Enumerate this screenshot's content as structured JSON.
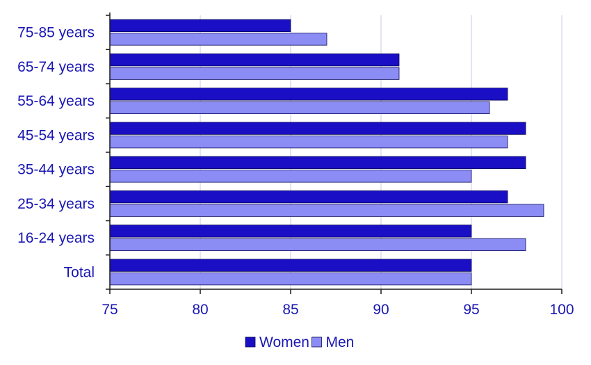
{
  "chart_data": {
    "type": "bar",
    "orientation": "horizontal",
    "categories": [
      "75-85 years",
      "65-74 years",
      "55-64 years",
      "45-54 years",
      "35-44 years",
      "25-34 years",
      "16-24 years",
      "Total"
    ],
    "series": [
      {
        "name": "Women",
        "color": "#1a0fc4",
        "values": [
          85,
          91,
          97,
          98,
          98,
          97,
          95,
          95
        ]
      },
      {
        "name": "Men",
        "color": "#8c8cf5",
        "values": [
          87,
          91,
          96,
          97,
          95,
          99,
          98,
          95
        ]
      }
    ],
    "xlim": [
      75,
      100
    ],
    "xticks": [
      "75",
      "80",
      "85",
      "90",
      "95",
      "100"
    ],
    "grid": "vertical",
    "legend_position": "bottom-center",
    "text_color": "#1a17b4",
    "grid_color": "#c8c8ee"
  }
}
